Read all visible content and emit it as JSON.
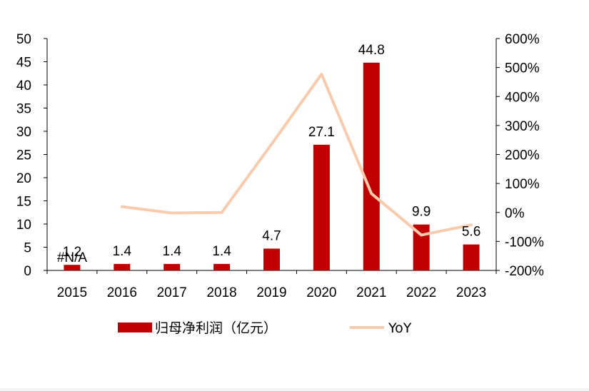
{
  "chart_data": {
    "type": "bar",
    "categories": [
      "2015",
      "2016",
      "2017",
      "2018",
      "2019",
      "2020",
      "2021",
      "2022",
      "2023"
    ],
    "series": [
      {
        "name": "归母净利润（亿元）",
        "type": "bar",
        "axis": "left",
        "values": [
          1.2,
          1.4,
          1.4,
          1.4,
          4.7,
          27.1,
          44.8,
          9.9,
          5.6
        ],
        "labels": [
          "1.2",
          "1.4",
          "1.4",
          "1.4",
          "4.7",
          "27.1",
          "44.8",
          "9.9",
          "5.6"
        ],
        "color": "#c00000"
      },
      {
        "name": "YoY",
        "type": "line",
        "axis": "right",
        "values": [
          null,
          0.2,
          -0.02,
          0.0,
          2.36,
          4.77,
          0.65,
          -0.78,
          -0.43
        ],
        "color": "#f8cbad"
      }
    ],
    "na_label": "#N/A",
    "y_left": {
      "range": [
        0,
        50
      ],
      "ticks": [
        "0",
        "5",
        "10",
        "15",
        "20",
        "25",
        "30",
        "35",
        "40",
        "45",
        "50"
      ]
    },
    "y_right": {
      "range": [
        -2,
        6
      ],
      "ticks": [
        "-200%",
        "-100%",
        "0%",
        "100%",
        "200%",
        "300%",
        "400%",
        "500%",
        "600%"
      ]
    },
    "legend": {
      "position": "bottom"
    },
    "grid": false
  }
}
